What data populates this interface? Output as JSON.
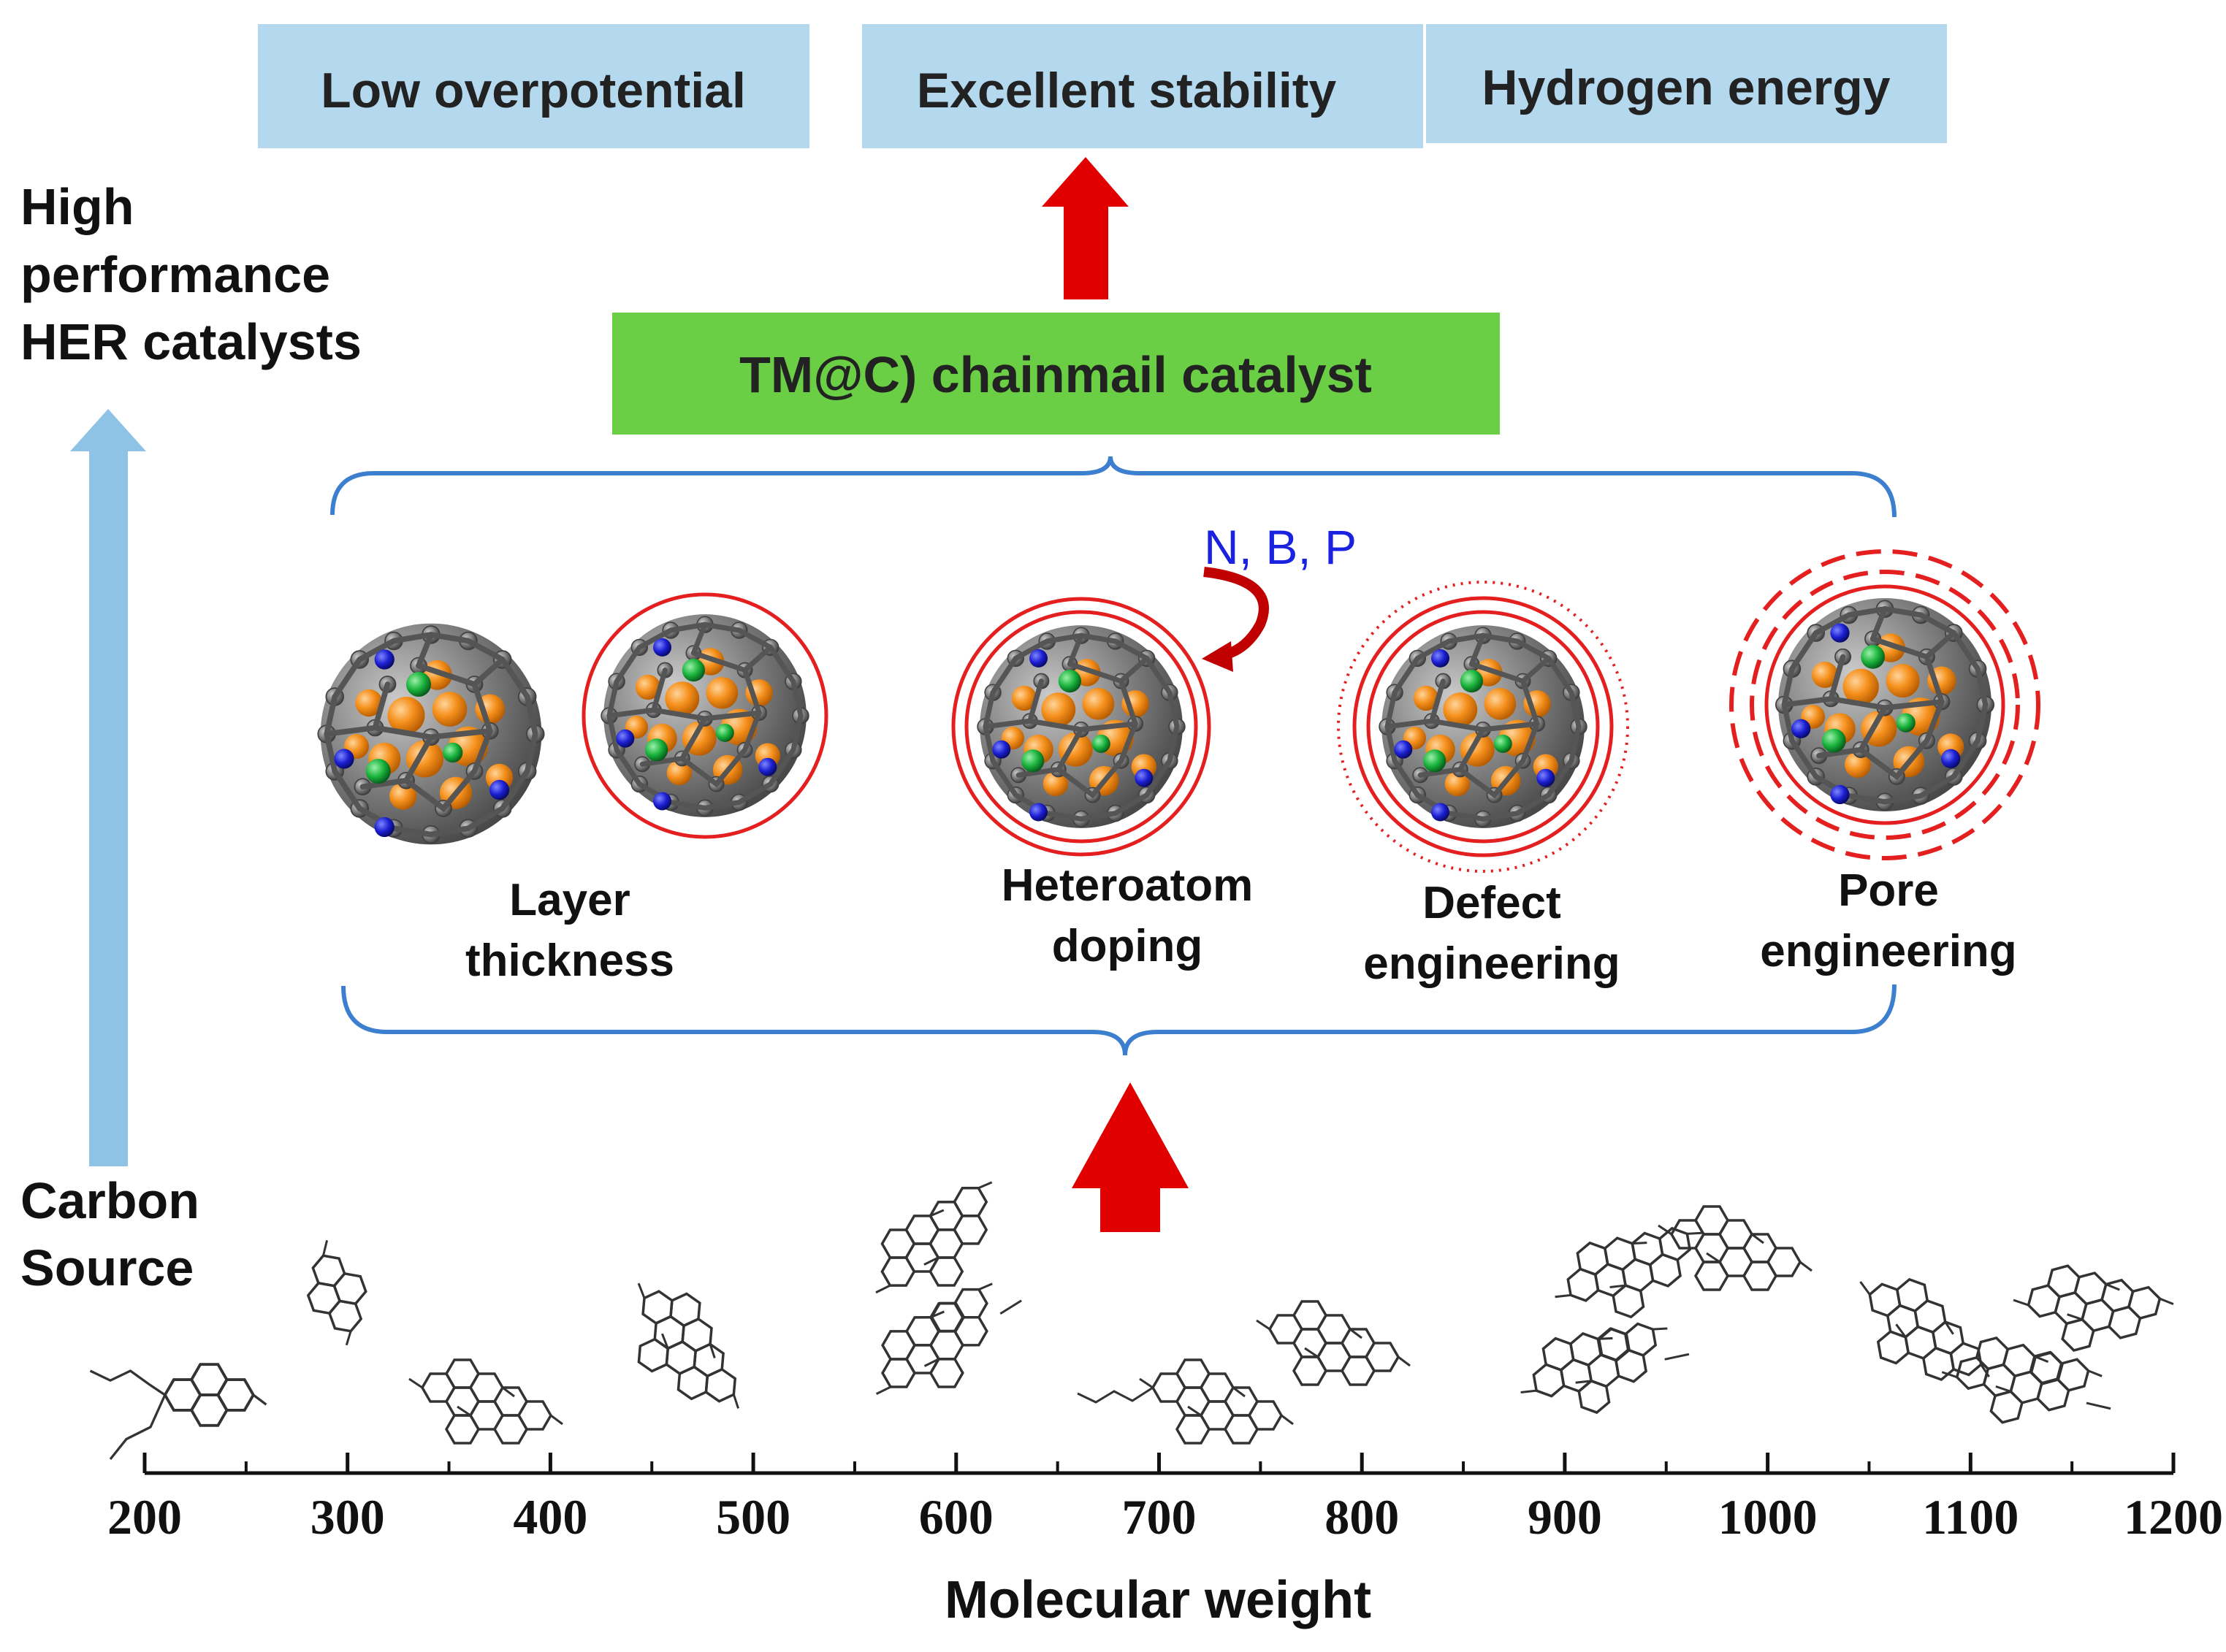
{
  "outcomes": [
    {
      "label": "Low overpotential"
    },
    {
      "label": "Excellent stability"
    },
    {
      "label": "Hydrogen energy"
    }
  ],
  "side_label": {
    "top_lines": [
      "High",
      "performance",
      "HER catalysts"
    ],
    "bottom_lines": [
      "Carbon",
      "Source"
    ]
  },
  "catalyst_box": {
    "label": "TM@C) chainmail catalyst"
  },
  "dopants": {
    "label": "N, B, P"
  },
  "strategies": [
    {
      "lines": [
        "Layer",
        "thickness"
      ]
    },
    {
      "lines": [
        "Heteroatom",
        "doping"
      ]
    },
    {
      "lines": [
        "Defect",
        "engineering"
      ]
    },
    {
      "lines": [
        "Pore",
        "engineering"
      ]
    }
  ],
  "axis": {
    "title": "Molecular weight",
    "ticks": [
      "200",
      "300",
      "400",
      "500",
      "600",
      "700",
      "800",
      "900",
      "1000",
      "1100",
      "1200"
    ]
  },
  "colors": {
    "box_blue": "#b4d9ef",
    "box_green": "#6acf44",
    "arrow_red": "#e10000",
    "arrow_blue": "#8ec3e6",
    "bracket_blue": "#3d7fcf",
    "dopant_blue": "#1a22e0",
    "ring_red": "#e41f1f",
    "carbon_gray": "#6e6e6e",
    "metal_orange": "#f5901c",
    "nitrogen_blue": "#1b1fd2",
    "dopant_green": "#19b23b"
  }
}
